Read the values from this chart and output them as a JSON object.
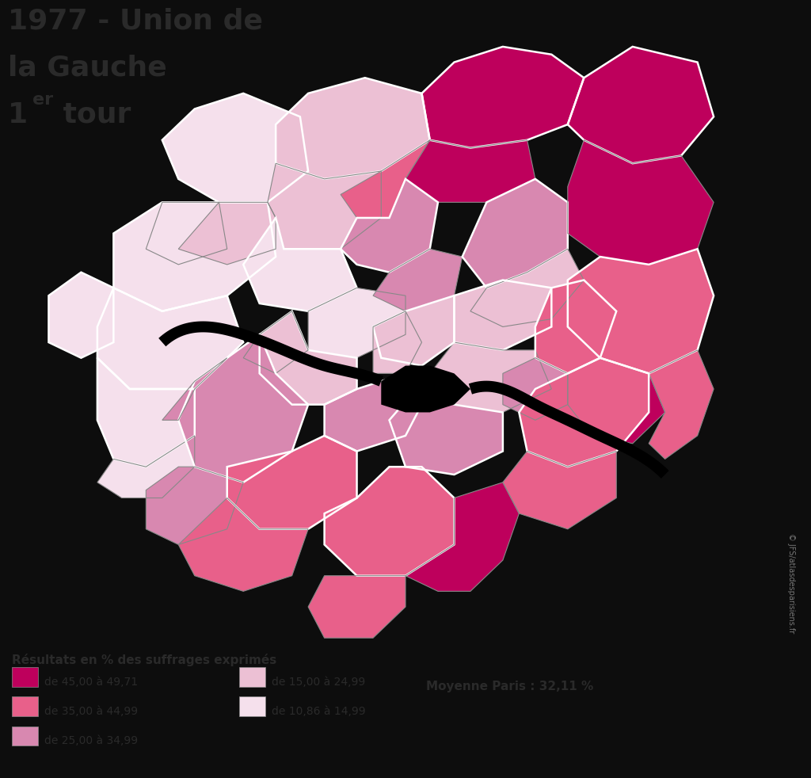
{
  "title_line1": "1977 - Union de",
  "title_line2": "la Gauche",
  "title_line3a": "1",
  "title_line3b": "er",
  "title_line3c": " tour",
  "legend_title": "Résultats en % des suffrages exprimés",
  "legend_items": [
    {
      "label": "de 45,00 à 49,71",
      "color": "#BE005C"
    },
    {
      "label": "de 35,00 à 44,99",
      "color": "#E8608A"
    },
    {
      "label": "de 25,00 à 34,99",
      "color": "#D888B0"
    },
    {
      "label": "de 15,00 à 24,99",
      "color": "#ECC0D4"
    },
    {
      "label": "de 10,86 à 14,99",
      "color": "#F5E0EC"
    }
  ],
  "moyenne": "Moyenne Paris : 32,11 %",
  "background_color": "#0D0D0D",
  "text_color": "#2A2A2A",
  "border_major": "#FFFFFF",
  "border_minor": "#888888",
  "copyright": "© JFS/atlasdesparisiens.fr"
}
